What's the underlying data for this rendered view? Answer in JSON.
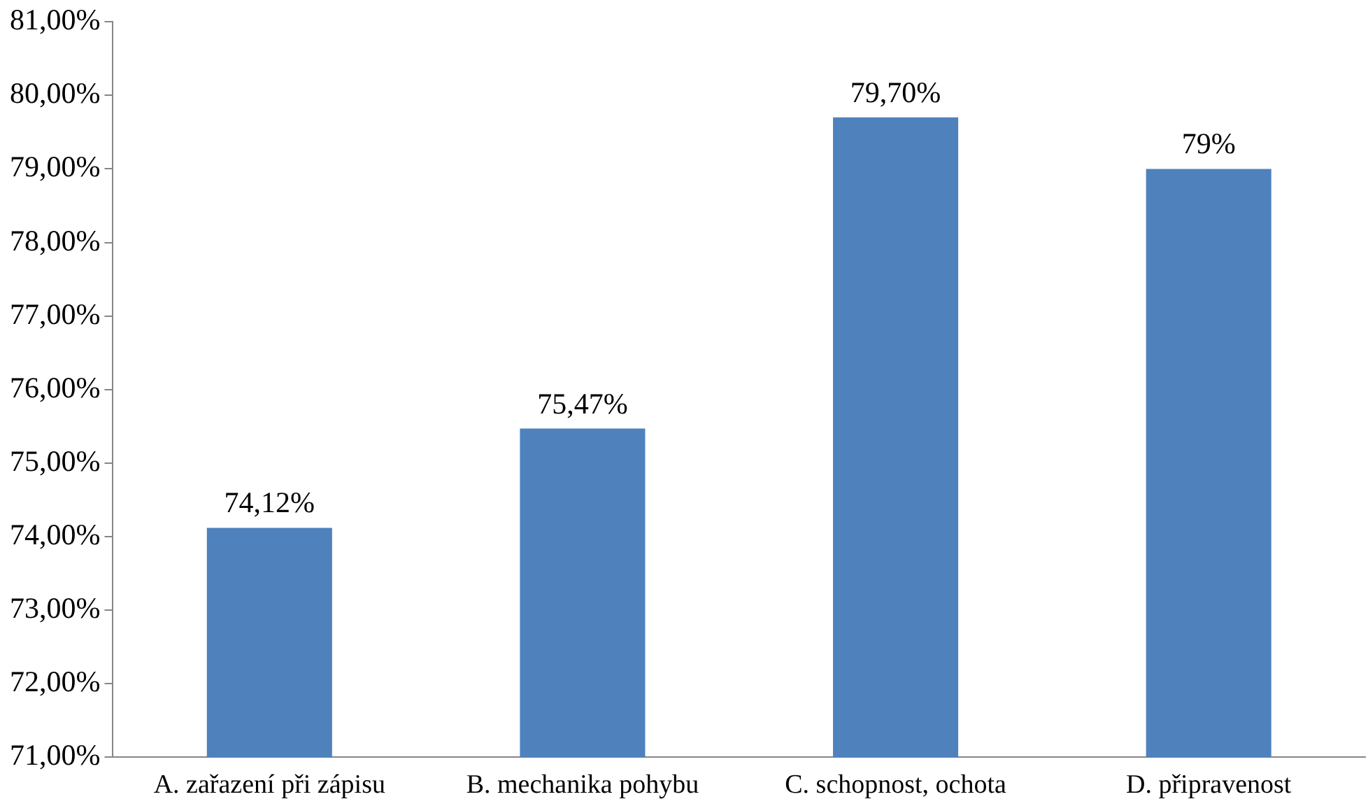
{
  "chart_data": {
    "type": "bar",
    "categories": [
      "A. zařazení při zápisu",
      "B. mechanika pohybu",
      "C. schopnost, ochota",
      "D. připravenost"
    ],
    "values": [
      74.12,
      75.47,
      79.7,
      79
    ],
    "value_labels": [
      "74,12%",
      "75,47%",
      "79,70%",
      "79%"
    ],
    "color": "#4f81bd",
    "ylim": [
      71,
      81
    ],
    "yticks": [
      {
        "value": 71,
        "label": "71,00%"
      },
      {
        "value": 72,
        "label": "72,00%"
      },
      {
        "value": 73,
        "label": "73,00%"
      },
      {
        "value": 74,
        "label": "74,00%"
      },
      {
        "value": 75,
        "label": "75,00%"
      },
      {
        "value": 76,
        "label": "76,00%"
      },
      {
        "value": 77,
        "label": "77,00%"
      },
      {
        "value": 78,
        "label": "78,00%"
      },
      {
        "value": 79,
        "label": "79,00%"
      },
      {
        "value": 80,
        "label": "80,00%"
      },
      {
        "value": 81,
        "label": "81,00%"
      }
    ],
    "grid": false,
    "legend": false
  }
}
